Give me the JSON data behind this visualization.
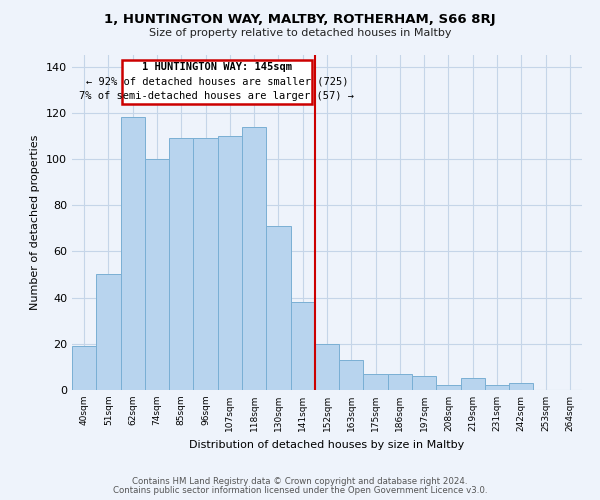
{
  "title": "1, HUNTINGTON WAY, MALTBY, ROTHERHAM, S66 8RJ",
  "subtitle": "Size of property relative to detached houses in Maltby",
  "xlabel": "Distribution of detached houses by size in Maltby",
  "ylabel": "Number of detached properties",
  "bar_labels": [
    "40sqm",
    "51sqm",
    "62sqm",
    "74sqm",
    "85sqm",
    "96sqm",
    "107sqm",
    "118sqm",
    "130sqm",
    "141sqm",
    "152sqm",
    "163sqm",
    "175sqm",
    "186sqm",
    "197sqm",
    "208sqm",
    "219sqm",
    "231sqm",
    "242sqm",
    "253sqm",
    "264sqm"
  ],
  "bar_values": [
    19,
    50,
    118,
    100,
    109,
    109,
    110,
    114,
    71,
    38,
    20,
    13,
    7,
    7,
    6,
    2,
    5,
    2,
    3,
    0,
    0
  ],
  "bar_color": "#b8d4ee",
  "bar_edge_color": "#7aafd4",
  "annotation_title": "1 HUNTINGTON WAY: 145sqm",
  "annotation_line1": "← 92% of detached houses are smaller (725)",
  "annotation_line2": "7% of semi-detached houses are larger (57) →",
  "annotation_box_edge_color": "#cc0000",
  "annotation_box_face_color": "#ffffff",
  "reference_line_color": "#cc0000",
  "ylim": [
    0,
    145
  ],
  "yticks": [
    0,
    20,
    40,
    60,
    80,
    100,
    120,
    140
  ],
  "footer_line1": "Contains HM Land Registry data © Crown copyright and database right 2024.",
  "footer_line2": "Contains public sector information licensed under the Open Government Licence v3.0.",
  "background_color": "#eef3fb",
  "grid_color": "#c5d5e8"
}
